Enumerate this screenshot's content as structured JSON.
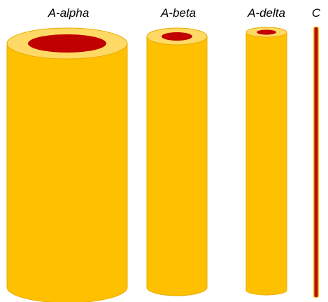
{
  "fibers": [
    {
      "label": "A-alpha"
    },
    {
      "label": "A-beta"
    },
    {
      "label": "A-delta"
    },
    {
      "label": "C"
    }
  ]
}
